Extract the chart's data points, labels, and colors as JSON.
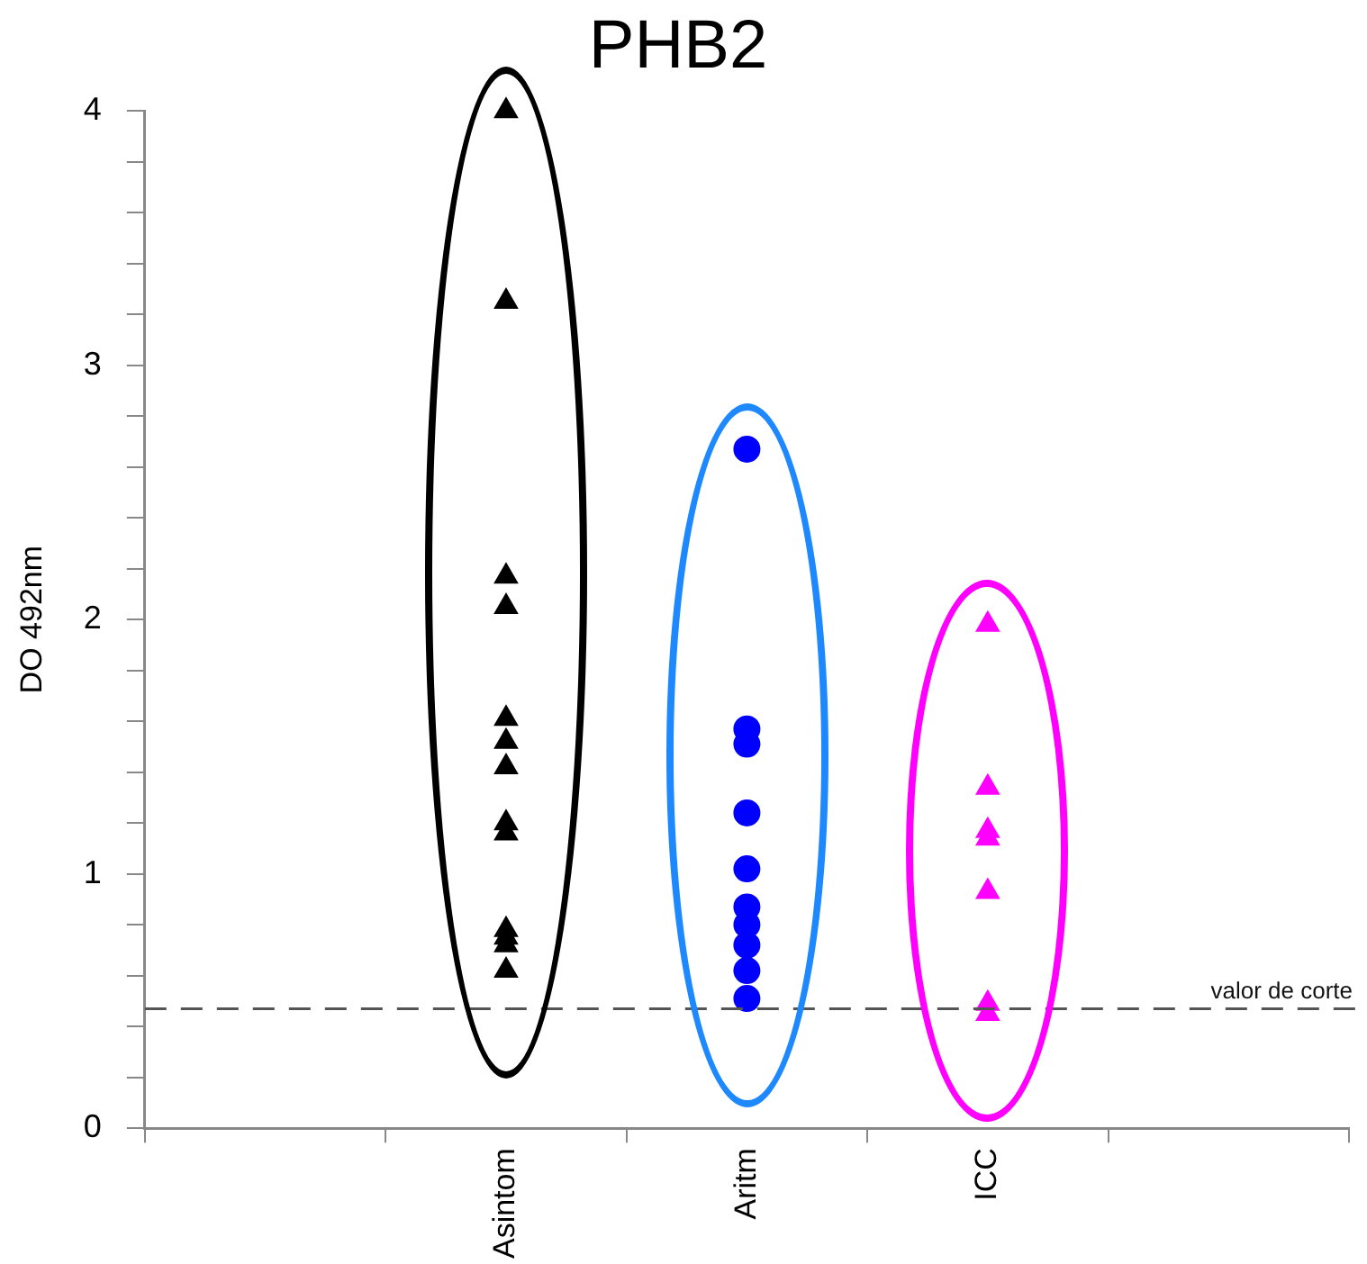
{
  "chart_data": {
    "type": "scatter",
    "title": "PHB2",
    "ylabel": "DO 492nm",
    "categories": [
      null,
      "Asintom",
      "Aritm",
      "ICC",
      null
    ],
    "ylim": [
      0,
      4
    ],
    "yticks": [
      0,
      {
        "value": 0.2,
        "label": null
      },
      {
        "value": 0.4,
        "label": null
      },
      {
        "value": 0.6,
        "label": null
      },
      {
        "value": 0.8,
        "label": null
      },
      1,
      {
        "value": 1.2,
        "label": null
      },
      {
        "value": 1.4,
        "label": null
      },
      {
        "value": 1.6,
        "label": null
      },
      {
        "value": 1.8,
        "label": null
      },
      2,
      {
        "value": 2.2,
        "label": null
      },
      {
        "value": 2.4,
        "label": null
      },
      {
        "value": 2.6,
        "label": null
      },
      {
        "value": 2.8,
        "label": null
      },
      3,
      {
        "value": 3.2,
        "label": null
      },
      {
        "value": 3.4,
        "label": null
      },
      {
        "value": 3.6,
        "label": null
      },
      {
        "value": 3.8,
        "label": null
      },
      4
    ],
    "grid": false,
    "legend": false,
    "series": [
      {
        "color": "#000000",
        "marker": "triangle",
        "x": [
          "Asintom",
          "Asintom",
          "Asintom",
          "Asintom",
          "Asintom",
          "Asintom",
          "Asintom",
          "Asintom",
          "Asintom",
          "Asintom",
          "Asintom",
          "Asintom",
          "Asintom"
        ],
        "values": [
          4.0,
          3.25,
          2.17,
          2.05,
          1.61,
          1.52,
          1.42,
          1.2,
          1.16,
          0.78,
          0.75,
          0.72,
          0.62
        ]
      },
      {
        "color": "#0000ff",
        "marker": "circle",
        "x": [
          "Aritm",
          "Aritm",
          "Aritm",
          "Aritm",
          "Aritm",
          "Aritm",
          "Aritm",
          "Aritm",
          "Aritm",
          "Aritm"
        ],
        "values": [
          2.67,
          1.57,
          1.51,
          1.24,
          1.02,
          0.87,
          0.8,
          0.72,
          0.62,
          0.51
        ]
      },
      {
        "color": "#ff00ff",
        "marker": "triangle",
        "x": [
          "ICC",
          "ICC",
          "ICC",
          "ICC",
          "ICC",
          "ICC",
          "ICC"
        ],
        "values": [
          1.98,
          1.34,
          1.17,
          1.14,
          0.93,
          0.49,
          0.45
        ]
      }
    ],
    "ref_lines": [
      {
        "axis": "y",
        "value": 0.47,
        "label": "valor de corte",
        "color": "#555555",
        "line_style": "dashed"
      }
    ]
  }
}
